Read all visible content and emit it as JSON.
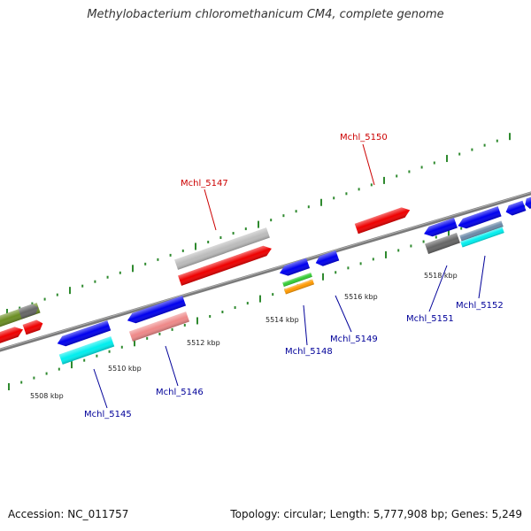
{
  "title": "Methylobacterium chloromethanicum CM4, complete genome",
  "footer": {
    "accession": "Accession: NC_011757",
    "summary": "Topology: circular; Length: 5,777,908 bp; Genes: 5,249"
  },
  "colors": {
    "backbone": "#8a8a8a",
    "tick": "#2f8a2f",
    "label_forward": "#cc0000",
    "label_reverse": "#000099",
    "blue": "#0000ee",
    "red": "#ee0000",
    "grey": "#bbbbbb",
    "darkgrey": "#666666",
    "pink": "#ee8888",
    "cyan": "#00eeee",
    "green": "#33cc33",
    "orange": "#ff9900",
    "olive": "#6b8e23",
    "steel": "#6c8aa8"
  },
  "kbp_labels": [
    {
      "text": "5508 kbp"
    },
    {
      "text": "5510 kbp"
    },
    {
      "text": "5512 kbp"
    },
    {
      "text": "5514 kbp"
    },
    {
      "text": "5516 kbp"
    },
    {
      "text": "5518 kbp"
    }
  ],
  "gene_labels": [
    {
      "text": "Mchl_5145",
      "strand": "reverse"
    },
    {
      "text": "Mchl_5146",
      "strand": "reverse"
    },
    {
      "text": "Mchl_5147",
      "strand": "forward"
    },
    {
      "text": "Mchl_5148",
      "strand": "reverse"
    },
    {
      "text": "Mchl_5149",
      "strand": "reverse"
    },
    {
      "text": "Mchl_5150",
      "strand": "forward"
    },
    {
      "text": "Mchl_5151",
      "strand": "reverse"
    },
    {
      "text": "Mchl_5152",
      "strand": "reverse"
    }
  ]
}
